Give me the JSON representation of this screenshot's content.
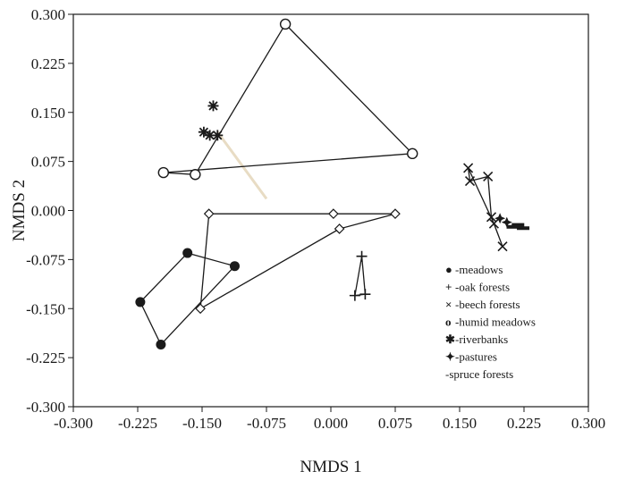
{
  "chart_data": {
    "type": "scatter",
    "title": "",
    "xlabel": "NMDS 1",
    "ylabel": "NMDS 2",
    "xlim": [
      -0.3,
      0.3
    ],
    "ylim": [
      -0.3,
      0.3
    ],
    "x_ticks": [
      "-0.300",
      "-0.225",
      "-0.150",
      "-0.075",
      "0.000",
      "0.075",
      "0.150",
      "0.225",
      "0.300"
    ],
    "y_ticks": [
      "0.300",
      "0.225",
      "0.150",
      "0.075",
      "0.000",
      "-0.075",
      "-0.150",
      "-0.225",
      "-0.300"
    ],
    "grid": false,
    "legend_position": "bottom-right",
    "legend": [
      {
        "symbol": "●",
        "label": "-meadows"
      },
      {
        "symbol": "+",
        "label": "-oak forests"
      },
      {
        "symbol": "×",
        "label": "-beech forests"
      },
      {
        "symbol": "o",
        "label": "-humid meadows"
      },
      {
        "symbol": "✱",
        "label": "-riverbanks"
      },
      {
        "symbol": "✦",
        "label": "-pastures"
      },
      {
        "symbol": "",
        "label": "-spruce forests"
      }
    ],
    "series": [
      {
        "name": "meadows",
        "marker": "filled-circle",
        "hull": true,
        "points": [
          [
            -0.198,
            -0.205
          ],
          [
            -0.222,
            -0.14
          ],
          [
            -0.167,
            -0.065
          ],
          [
            -0.112,
            -0.085
          ]
        ]
      },
      {
        "name": "oak forests",
        "marker": "plus",
        "hull": true,
        "points": [
          [
            0.036,
            -0.07
          ],
          [
            0.028,
            -0.13
          ],
          [
            0.04,
            -0.128
          ]
        ]
      },
      {
        "name": "beech forests",
        "marker": "x",
        "hull": true,
        "points": [
          [
            0.16,
            0.065
          ],
          [
            0.162,
            0.045
          ],
          [
            0.183,
            0.052
          ],
          [
            0.187,
            -0.01
          ],
          [
            0.2,
            -0.055
          ],
          [
            0.19,
            -0.02
          ]
        ]
      },
      {
        "name": "humid meadows",
        "marker": "open-circle",
        "hull": true,
        "points": [
          [
            -0.053,
            0.285
          ],
          [
            0.095,
            0.087
          ],
          [
            -0.195,
            0.058
          ],
          [
            -0.158,
            0.055
          ]
        ]
      },
      {
        "name": "riverbanks",
        "marker": "asterisk",
        "hull": false,
        "points": [
          [
            -0.137,
            0.16
          ],
          [
            -0.148,
            0.12
          ],
          [
            -0.141,
            0.115
          ],
          [
            -0.132,
            0.115
          ]
        ]
      },
      {
        "name": "pastures",
        "marker": "star4",
        "hull": false,
        "points": [
          [
            0.197,
            -0.012
          ],
          [
            0.205,
            -0.018
          ]
        ]
      },
      {
        "name": "spruce forests",
        "marker": "dash",
        "hull": false,
        "points": [
          [
            0.212,
            -0.025
          ],
          [
            0.224,
            -0.027
          ],
          [
            0.218,
            -0.022
          ]
        ]
      },
      {
        "name": "",
        "marker": "open-diamond",
        "hull": true,
        "points": [
          [
            -0.142,
            -0.005
          ],
          [
            0.003,
            -0.005
          ],
          [
            0.075,
            -0.005
          ],
          [
            0.01,
            -0.028
          ],
          [
            -0.152,
            -0.15
          ]
        ]
      }
    ],
    "colors": {
      "ink": "#1a1a1a",
      "faint_line": "#e8dcc4"
    }
  }
}
